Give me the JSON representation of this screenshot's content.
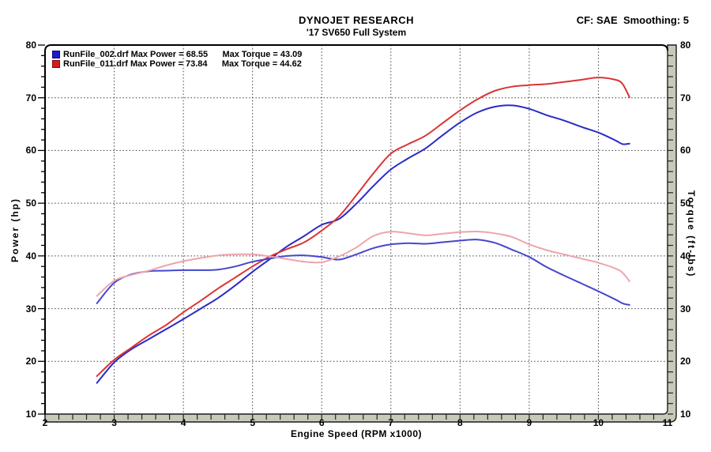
{
  "header": {
    "title": "DYNOJET RESEARCH",
    "subtitle": "'17 SV650 Full System",
    "correction_info": "CF: SAE  Smoothing: 5"
  },
  "legend": [
    {
      "label": "RunFile_002.drf Max Power = 68.55      Max Torque = 43.09",
      "color": "#1a1ad0"
    },
    {
      "label": "RunFile_011.drf Max Power = 73.84      Max Torque = 44.62",
      "color": "#d81c1c"
    }
  ],
  "axis_titles": {
    "left": "Power (hp)",
    "right": "Torque (ft-lbs)",
    "bottom": "Engine Speed (RPM x1000)"
  },
  "colors": {
    "power_002": "#2a2ac8",
    "power_011": "#dc3434",
    "torque_002": "#4646ce",
    "torque_011": "#eda4ac",
    "grid": "#3f3f3f",
    "frame": "#000000",
    "ruler_fill": "#c9c9ba",
    "ruler_border": "#1c1c1c",
    "tick": "#222222"
  },
  "chart_data": {
    "type": "line",
    "title": "DYNOJET RESEARCH",
    "subtitle": "'17 SV650 Full System",
    "xlabel": "Engine Speed (RPM x1000)",
    "ylabel_left": "Power (hp)",
    "ylabel_right": "Torque (ft-lbs)",
    "xlim": [
      2,
      11
    ],
    "ylim": [
      10,
      80
    ],
    "x_ticks": [
      2,
      3,
      4,
      5,
      6,
      7,
      8,
      9,
      10,
      11
    ],
    "y_ticks": [
      10,
      20,
      30,
      40,
      50,
      60,
      70,
      80
    ],
    "x_minor_step": 0.2,
    "y_minor_step": 2,
    "grid": "dotted",
    "legend_position": "top-left",
    "x": [
      2.75,
      3.0,
      3.25,
      3.5,
      3.75,
      4.0,
      4.25,
      4.5,
      4.75,
      5.0,
      5.25,
      5.5,
      5.75,
      6.0,
      6.25,
      6.5,
      6.75,
      7.0,
      7.25,
      7.5,
      7.75,
      8.0,
      8.25,
      8.5,
      8.75,
      9.0,
      9.25,
      9.5,
      9.75,
      10.0,
      10.25,
      10.35,
      10.45
    ],
    "series": [
      {
        "name": "RunFile_002.drf Power (hp)",
        "axis": "left",
        "color_key": "power_002",
        "max": 68.55,
        "values": [
          15.9,
          19.8,
          22.3,
          24.2,
          26.1,
          28.0,
          30.0,
          32.0,
          34.4,
          37.0,
          39.4,
          41.8,
          43.8,
          45.9,
          47.0,
          49.9,
          53.3,
          56.4,
          58.5,
          60.4,
          62.9,
          65.3,
          67.2,
          68.3,
          68.55,
          67.9,
          66.7,
          65.7,
          64.5,
          63.4,
          61.9,
          61.2,
          61.3
        ]
      },
      {
        "name": "RunFile_011.drf Power (hp)",
        "axis": "left",
        "color_key": "power_011",
        "max": 73.84,
        "values": [
          17.2,
          20.3,
          22.6,
          24.9,
          26.9,
          29.3,
          31.5,
          33.8,
          35.9,
          38.0,
          39.9,
          41.3,
          42.6,
          44.8,
          47.5,
          51.5,
          55.7,
          59.4,
          61.2,
          62.8,
          65.2,
          67.6,
          69.7,
          71.3,
          72.1,
          72.4,
          72.6,
          73.0,
          73.4,
          73.84,
          73.4,
          72.6,
          70.1
        ]
      },
      {
        "name": "RunFile_002.drf Torque (ft-lbs)",
        "axis": "right",
        "color_key": "torque_002",
        "max": 43.09,
        "values": [
          31.0,
          34.9,
          36.5,
          37.1,
          37.2,
          37.3,
          37.3,
          37.4,
          38.0,
          38.9,
          39.5,
          40.0,
          40.1,
          39.8,
          39.3,
          40.3,
          41.5,
          42.2,
          42.4,
          42.3,
          42.6,
          42.9,
          43.09,
          42.5,
          41.2,
          39.8,
          37.9,
          36.3,
          34.8,
          33.3,
          31.7,
          31.0,
          30.7
        ]
      },
      {
        "name": "RunFile_011.drf Torque (ft-lbs)",
        "axis": "right",
        "color_key": "torque_011",
        "max": 44.62,
        "values": [
          32.4,
          35.3,
          36.4,
          37.2,
          38.2,
          39.0,
          39.6,
          40.1,
          40.3,
          40.3,
          39.9,
          39.4,
          38.9,
          38.8,
          39.9,
          41.6,
          43.8,
          44.6,
          44.3,
          43.9,
          44.2,
          44.5,
          44.62,
          44.3,
          43.6,
          42.2,
          41.1,
          40.3,
          39.5,
          38.7,
          37.6,
          36.8,
          35.2
        ]
      }
    ]
  }
}
